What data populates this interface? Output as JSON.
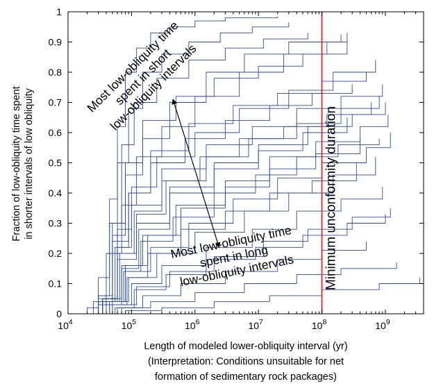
{
  "chart_data": {
    "type": "line",
    "x_scale": "log",
    "xlim": [
      10000,
      4000000000
    ],
    "ylim": [
      0,
      1
    ],
    "x_ticks": [
      {
        "value": 10000,
        "base": "10",
        "exp": "4"
      },
      {
        "value": 100000,
        "base": "10",
        "exp": "5"
      },
      {
        "value": 1000000,
        "base": "10",
        "exp": "6"
      },
      {
        "value": 10000000,
        "base": "10",
        "exp": "7"
      },
      {
        "value": 100000000,
        "base": "10",
        "exp": "8"
      },
      {
        "value": 1000000000,
        "base": "10",
        "exp": "9"
      }
    ],
    "y_ticks": [
      {
        "value": 0,
        "label": "0"
      },
      {
        "value": 0.1,
        "label": "0.1"
      },
      {
        "value": 0.2,
        "label": "0.2"
      },
      {
        "value": 0.3,
        "label": "0.3"
      },
      {
        "value": 0.4,
        "label": "0.4"
      },
      {
        "value": 0.5,
        "label": "0.5"
      },
      {
        "value": 0.6,
        "label": "0.6"
      },
      {
        "value": 0.7,
        "label": "0.7"
      },
      {
        "value": 0.8,
        "label": "0.8"
      },
      {
        "value": 0.9,
        "label": "0.9"
      },
      {
        "value": 1,
        "label": "1"
      }
    ],
    "xlabel_lines": [
      "Length of modeled lower-obliquity interval (yr)",
      "(Interpretation: Conditions unsuitable for net",
      "formation of sedimentary rock packages)"
    ],
    "ylabel_lines": [
      "Fraction of low-obliquity time spent",
      "in shorter intervals of low obliquity"
    ],
    "reference_line": {
      "x": 100000000,
      "label": "Minimum unconformity duration",
      "color": "#e8141c"
    },
    "series_color": "#2a4a9a",
    "annotations": [
      {
        "id": "short",
        "lines": [
          "Most low-obliquity time",
          "spent in short",
          "low-obliquity intervals"
        ]
      },
      {
        "id": "long",
        "lines": [
          "Most low-obliquity time",
          "spent in long",
          "low-obliquity intervals"
        ]
      }
    ],
    "arrow": {
      "from": {
        "x": 450000,
        "y": 0.71
      },
      "to": {
        "x": 2400000,
        "y": 0.22
      }
    },
    "series": [
      {
        "x": [
          10000,
          20000,
          30000,
          45000,
          60000,
          80000,
          120000,
          200000,
          400000,
          1000000,
          3000000,
          20000000
        ],
        "y": [
          0,
          0.02,
          0.12,
          0.38,
          0.62,
          0.8,
          0.88,
          0.93,
          0.95,
          0.97,
          0.98,
          0.985
        ]
      },
      {
        "x": [
          10000,
          25000,
          40000,
          60000,
          90000,
          150000,
          300000,
          800000,
          2500000,
          8000000,
          30000000
        ],
        "y": [
          0,
          0.04,
          0.2,
          0.5,
          0.68,
          0.8,
          0.86,
          0.9,
          0.93,
          0.95,
          0.965
        ]
      },
      {
        "x": [
          10000,
          30000,
          50000,
          80000,
          150000,
          400000,
          1500000,
          6000000,
          30000000,
          200000000
        ],
        "y": [
          0,
          0.06,
          0.26,
          0.46,
          0.58,
          0.7,
          0.8,
          0.86,
          0.9,
          0.925
        ]
      },
      {
        "x": [
          10000,
          30000,
          50000,
          70000,
          120000,
          300000,
          1000000,
          5000000,
          25000000,
          120000000,
          250000000
        ],
        "y": [
          0,
          0.03,
          0.2,
          0.36,
          0.52,
          0.62,
          0.72,
          0.8,
          0.86,
          0.9,
          0.93
        ]
      },
      {
        "x": [
          10000,
          30000,
          60000,
          100000,
          250000,
          1000000,
          5000000,
          30000000,
          150000000,
          700000000
        ],
        "y": [
          0,
          0.04,
          0.28,
          0.42,
          0.52,
          0.6,
          0.68,
          0.74,
          0.8,
          0.84
        ]
      },
      {
        "x": [
          10000,
          35000,
          60000,
          100000,
          300000,
          1500000,
          8000000,
          40000000,
          200000000,
          900000000
        ],
        "y": [
          0,
          0.05,
          0.22,
          0.36,
          0.48,
          0.56,
          0.62,
          0.68,
          0.72,
          0.76
        ]
      },
      {
        "x": [
          10000,
          30000,
          50000,
          90000,
          200000,
          800000,
          4000000,
          20000000,
          100000000,
          500000000
        ],
        "y": [
          0,
          0.04,
          0.24,
          0.4,
          0.54,
          0.63,
          0.69,
          0.73,
          0.77,
          0.8
        ]
      },
      {
        "x": [
          10000,
          35000,
          60000,
          120000,
          400000,
          2000000,
          10000000,
          60000000,
          300000000,
          1000000000
        ],
        "y": [
          0,
          0.05,
          0.18,
          0.3,
          0.42,
          0.5,
          0.56,
          0.62,
          0.66,
          0.7
        ]
      },
      {
        "x": [
          10000,
          40000,
          70000,
          150000,
          500000,
          3000000,
          15000000,
          80000000,
          400000000,
          1100000000
        ],
        "y": [
          0,
          0.05,
          0.16,
          0.26,
          0.36,
          0.44,
          0.52,
          0.57,
          0.62,
          0.66
        ]
      },
      {
        "x": [
          10000,
          35000,
          65000,
          120000,
          350000,
          1500000,
          7000000,
          40000000,
          200000000,
          800000000
        ],
        "y": [
          0,
          0.04,
          0.2,
          0.33,
          0.44,
          0.52,
          0.58,
          0.63,
          0.68,
          0.72
        ]
      },
      {
        "x": [
          10000,
          40000,
          80000,
          200000,
          800000,
          4000000,
          20000000,
          100000000,
          500000000,
          1200000000
        ],
        "y": [
          0,
          0.04,
          0.14,
          0.22,
          0.3,
          0.38,
          0.45,
          0.5,
          0.55,
          0.6
        ]
      },
      {
        "x": [
          10000,
          40000,
          70000,
          130000,
          400000,
          2000000,
          10000000,
          50000000,
          250000000
        ],
        "y": [
          0,
          0.03,
          0.15,
          0.28,
          0.4,
          0.48,
          0.54,
          0.6,
          0.65
        ]
      },
      {
        "x": [
          10000,
          45000,
          90000,
          250000,
          1000000,
          6000000,
          30000000,
          150000000,
          700000000
        ],
        "y": [
          0,
          0.04,
          0.12,
          0.2,
          0.27,
          0.34,
          0.4,
          0.46,
          0.52
        ]
      },
      {
        "x": [
          10000,
          50000,
          100000,
          300000,
          1500000,
          8000000,
          40000000,
          200000000,
          900000000
        ],
        "y": [
          0,
          0.03,
          0.1,
          0.16,
          0.22,
          0.28,
          0.34,
          0.38,
          0.42
        ]
      },
      {
        "x": [
          10000,
          40000,
          80000,
          180000,
          600000,
          3000000,
          15000000,
          80000000,
          400000000
        ],
        "y": [
          0,
          0.04,
          0.16,
          0.26,
          0.35,
          0.42,
          0.48,
          0.53,
          0.58
        ]
      },
      {
        "x": [
          10000,
          50000,
          120000,
          400000,
          2000000,
          12000000,
          60000000,
          300000000,
          1200000000
        ],
        "y": [
          0,
          0.03,
          0.09,
          0.14,
          0.19,
          0.24,
          0.28,
          0.32,
          0.35
        ]
      },
      {
        "x": [
          10000,
          60000,
          150000,
          600000,
          3000000,
          20000000,
          100000000,
          500000000
        ],
        "y": [
          0,
          0.02,
          0.06,
          0.1,
          0.14,
          0.18,
          0.21,
          0.24
        ]
      },
      {
        "x": [
          10000,
          70000,
          200000,
          1000000,
          6000000,
          40000000,
          200000000,
          1500000000
        ],
        "y": [
          0,
          0.02,
          0.04,
          0.07,
          0.1,
          0.13,
          0.15,
          0.17
        ]
      },
      {
        "x": [
          10000,
          80000,
          300000,
          2000000,
          15000000,
          100000000,
          800000000,
          3500000000
        ],
        "y": [
          0,
          0.01,
          0.02,
          0.04,
          0.06,
          0.08,
          0.1,
          0.12
        ]
      },
      {
        "x": [
          10000,
          30000,
          50000,
          80000,
          150000,
          500000,
          2000000,
          10000000,
          50000000,
          250000000
        ],
        "y": [
          0,
          0.05,
          0.3,
          0.5,
          0.64,
          0.72,
          0.78,
          0.82,
          0.86,
          0.9
        ]
      },
      {
        "x": [
          10000,
          35000,
          55000,
          90000,
          200000,
          700000,
          3000000,
          15000000,
          70000000,
          300000000
        ],
        "y": [
          0,
          0.04,
          0.22,
          0.4,
          0.5,
          0.58,
          0.64,
          0.69,
          0.73,
          0.76
        ]
      },
      {
        "x": [
          10000,
          40000,
          75000,
          140000,
          450000,
          2000000,
          9000000,
          40000000,
          180000000,
          800000000
        ],
        "y": [
          0,
          0.04,
          0.14,
          0.24,
          0.32,
          0.4,
          0.46,
          0.52,
          0.56,
          0.58
        ]
      },
      {
        "x": [
          10000,
          30000,
          45000,
          70000,
          110000,
          250000,
          800000,
          3000000,
          12000000,
          60000000
        ],
        "y": [
          0,
          0.06,
          0.3,
          0.56,
          0.7,
          0.78,
          0.84,
          0.88,
          0.91,
          0.93
        ]
      },
      {
        "x": [
          10000,
          35000,
          60000,
          110000,
          300000,
          1200000,
          5000000,
          25000000,
          120000000,
          600000000
        ],
        "y": [
          0,
          0.05,
          0.2,
          0.34,
          0.44,
          0.52,
          0.58,
          0.62,
          0.66,
          0.7
        ]
      },
      {
        "x": [
          10000,
          45000,
          85000,
          180000,
          600000,
          3000000,
          15000000,
          70000000,
          350000000
        ],
        "y": [
          0,
          0.03,
          0.12,
          0.2,
          0.28,
          0.34,
          0.4,
          0.44,
          0.5
        ]
      },
      {
        "x": [
          10000,
          55000,
          110000,
          350000,
          1500000,
          9000000,
          50000000,
          250000000,
          1000000000
        ],
        "y": [
          0,
          0.02,
          0.08,
          0.13,
          0.18,
          0.22,
          0.26,
          0.3,
          0.33
        ]
      }
    ]
  }
}
